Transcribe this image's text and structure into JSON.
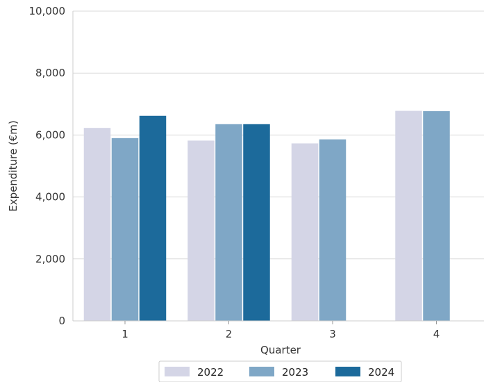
{
  "chart_data": {
    "type": "bar",
    "title": "",
    "xlabel": "Quarter",
    "ylabel": "Expenditure  (€m)",
    "categories": [
      "1",
      "2",
      "3",
      "4"
    ],
    "series": [
      {
        "name": "2022",
        "color": "#d4d5e6",
        "values": [
          6230,
          5820,
          5730,
          6780
        ]
      },
      {
        "name": "2023",
        "color": "#7fa7c6",
        "values": [
          5900,
          6350,
          5860,
          6770
        ]
      },
      {
        "name": "2024",
        "color": "#1c6a9b",
        "values": [
          6620,
          6350,
          null,
          null
        ]
      }
    ],
    "ylim": [
      0,
      10000
    ],
    "yticks": [
      0,
      2000,
      4000,
      6000,
      8000,
      10000
    ],
    "ytick_labels": [
      "0",
      "2,000",
      "4,000",
      "6,000",
      "8,000",
      "10,000"
    ],
    "grid": "horizontal",
    "legend_position": "bottom-center"
  }
}
